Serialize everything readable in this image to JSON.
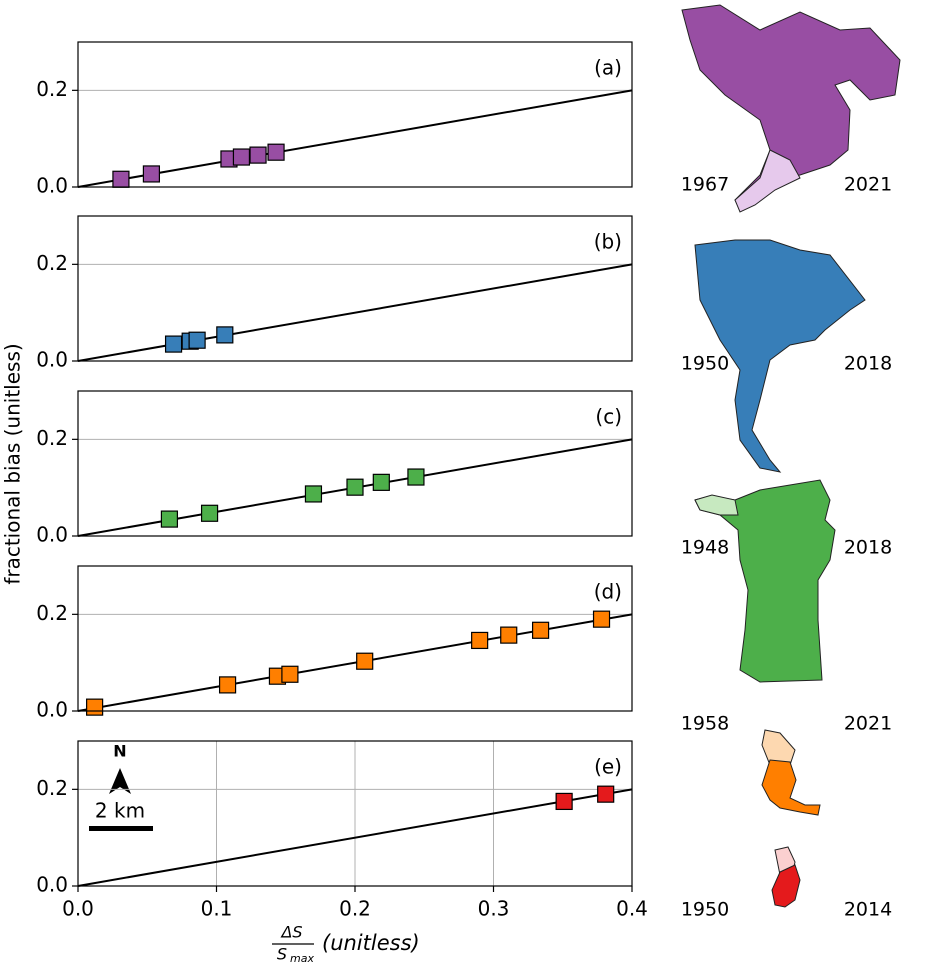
{
  "chart_data": [
    {
      "type": "scatter",
      "label": "(a)",
      "xlim": [
        0,
        0.4
      ],
      "ylim": [
        0,
        0.3
      ],
      "yticks": [
        {
          "value": 0,
          "label": "0.0"
        },
        0.2
      ],
      "grid": "y",
      "x": [
        0.031,
        0.053,
        0.109,
        0.118,
        0.13,
        0.143
      ],
      "series": [
        {
          "color": "#984ea3",
          "values": [
            0.016,
            0.027,
            0.058,
            0.062,
            0.066,
            0.072
          ]
        }
      ],
      "line": {
        "color": "#000000",
        "x": [
          0,
          0.4
        ],
        "values": [
          0,
          0.2
        ]
      }
    },
    {
      "type": "scatter",
      "label": "(b)",
      "xlim": [
        0,
        0.4
      ],
      "ylim": [
        0,
        0.3
      ],
      "yticks": [
        {
          "value": 0,
          "label": "0.0"
        },
        0.2
      ],
      "grid": "y",
      "x": [
        0.069,
        0.081,
        0.086,
        0.106
      ],
      "series": [
        {
          "color": "#377eb8",
          "values": [
            0.035,
            0.041,
            0.043,
            0.054
          ]
        }
      ],
      "line": {
        "color": "#000000",
        "x": [
          0,
          0.4
        ],
        "values": [
          0,
          0.2
        ]
      }
    },
    {
      "type": "scatter",
      "label": "(c)",
      "ylabel": "fractional bias (unitless)",
      "xlim": [
        0,
        0.4
      ],
      "ylim": [
        0,
        0.3
      ],
      "yticks": [
        {
          "value": 0,
          "label": "0.0"
        },
        0.2
      ],
      "grid": "y",
      "x": [
        0.066,
        0.095,
        0.17,
        0.2,
        0.219,
        0.244
      ],
      "series": [
        {
          "color": "#4daf4a",
          "values": [
            0.035,
            0.047,
            0.087,
            0.101,
            0.111,
            0.122
          ]
        }
      ],
      "line": {
        "color": "#000000",
        "x": [
          0,
          0.4
        ],
        "values": [
          0,
          0.2
        ]
      }
    },
    {
      "type": "scatter",
      "label": "(d)",
      "xlim": [
        0,
        0.4
      ],
      "ylim": [
        0,
        0.3
      ],
      "yticks": [
        {
          "value": 0,
          "label": "0.0"
        },
        0.2
      ],
      "grid": "y",
      "x": [
        0.012,
        0.108,
        0.144,
        0.153,
        0.207,
        0.29,
        0.311,
        0.334,
        0.378
      ],
      "series": [
        {
          "color": "#ff7f00",
          "values": [
            0.008,
            0.054,
            0.072,
            0.076,
            0.103,
            0.146,
            0.157,
            0.167,
            0.19
          ]
        }
      ],
      "line": {
        "color": "#000000",
        "x": [
          0,
          0.4
        ],
        "values": [
          0,
          0.2
        ]
      }
    },
    {
      "type": "scatter",
      "label": "(e)",
      "xlim": [
        0,
        0.4
      ],
      "ylim": [
        0,
        0.3
      ],
      "yticks": [
        {
          "value": 0,
          "label": "0.0"
        },
        0.2
      ],
      "grid": "both",
      "xticks": [
        {
          "value": 0,
          "label": "0.0"
        },
        0.1,
        0.2,
        0.3,
        0.4
      ],
      "xlabel": {
        "numerator": "ΔS",
        "denominator": "S",
        "subscript": "max",
        "unit": "(unitless)"
      },
      "north": "N",
      "scale_bar": "2 km",
      "x": [
        0.351,
        0.381
      ],
      "series": [
        {
          "color": "#e41a1c",
          "values": [
            0.175,
            0.19
          ]
        }
      ],
      "line": {
        "color": "#000000",
        "x": [
          0,
          0.4
        ],
        "values": [
          0,
          0.2
        ]
      }
    }
  ],
  "maps": [
    {
      "start": "1967",
      "end": "2021"
    },
    {
      "start": "1950",
      "end": "2018"
    },
    {
      "start": "1948",
      "end": "2018"
    },
    {
      "start": "1958",
      "end": "2021"
    },
    {
      "start": "1950",
      "end": "2014"
    }
  ]
}
